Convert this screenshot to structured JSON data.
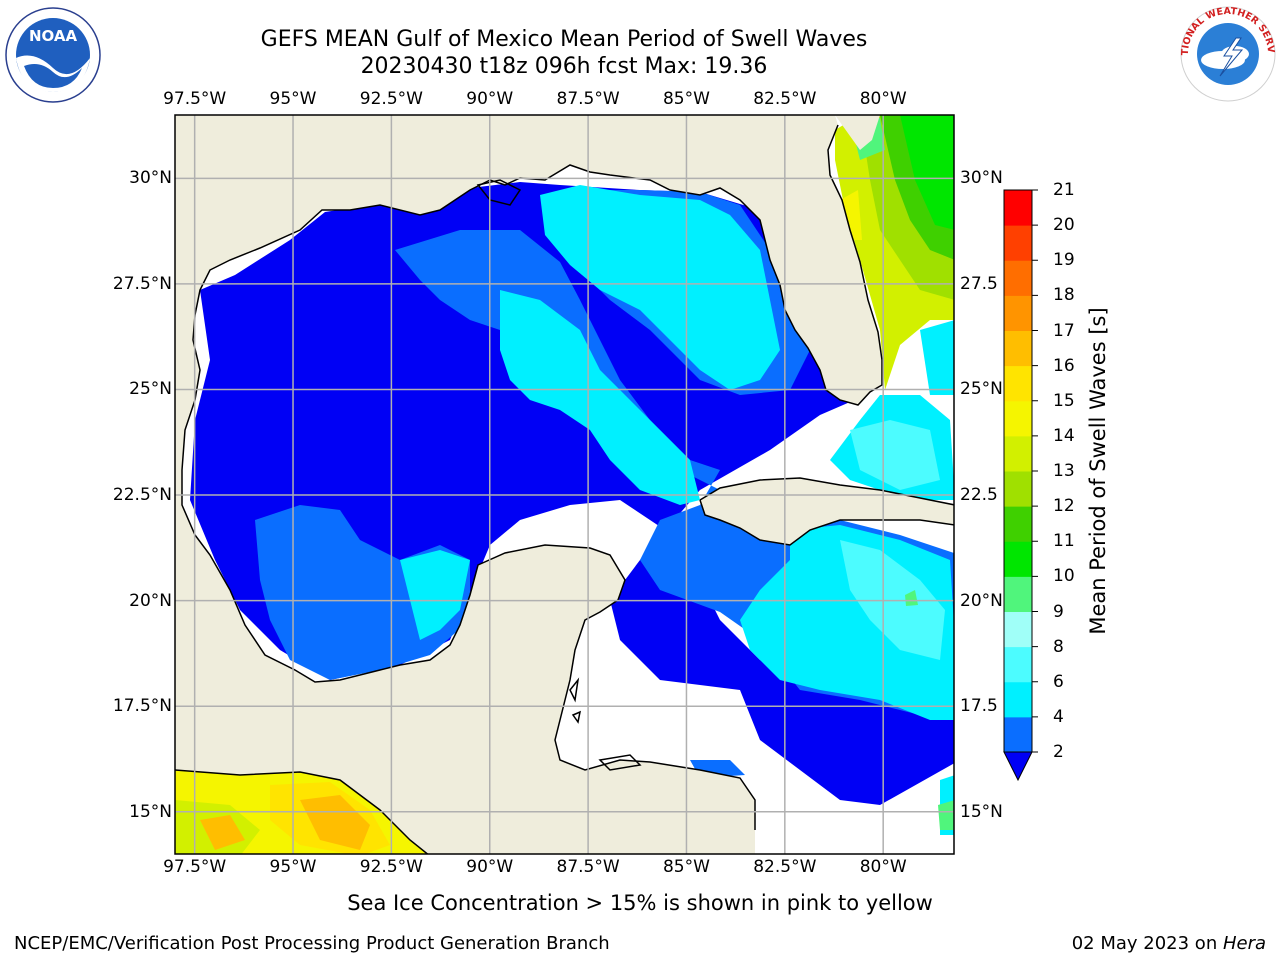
{
  "title": {
    "line1": "GEFS MEAN Gulf of Mexico Mean Period of Swell Waves",
    "line2": "20230430 t18z 096h fcst   Max: 19.36"
  },
  "map": {
    "extent": {
      "lon_min": -98.0,
      "lon_max": -78.2,
      "lat_min": 14.0,
      "lat_max": 31.5
    },
    "lon_ticks": [
      {
        "value": -97.5,
        "label": "97.5°W"
      },
      {
        "value": -95.0,
        "label": "95°W"
      },
      {
        "value": -92.5,
        "label": "92.5°W"
      },
      {
        "value": -90.0,
        "label": "90°W"
      },
      {
        "value": -87.5,
        "label": "87.5°W"
      },
      {
        "value": -85.0,
        "label": "85°W"
      },
      {
        "value": -82.5,
        "label": "82.5°W"
      },
      {
        "value": -80.0,
        "label": "80°W"
      }
    ],
    "lat_ticks_left": [
      {
        "value": 30.0,
        "label": "30°N"
      },
      {
        "value": 27.5,
        "label": "27.5°N"
      },
      {
        "value": 25.0,
        "label": "25°N"
      },
      {
        "value": 22.5,
        "label": "22.5°N"
      },
      {
        "value": 20.0,
        "label": "20°N"
      },
      {
        "value": 17.5,
        "label": "17.5°N"
      },
      {
        "value": 15.0,
        "label": "15°N"
      }
    ],
    "lat_ticks_right": [
      {
        "value": 30.0,
        "label": "30°N"
      },
      {
        "value": 27.5,
        "label": "27.5"
      },
      {
        "value": 25.0,
        "label": "25°N"
      },
      {
        "value": 22.5,
        "label": "22.5"
      },
      {
        "value": 20.0,
        "label": "20°N"
      },
      {
        "value": 17.5,
        "label": "17.5"
      },
      {
        "value": 15.0,
        "label": "15°N"
      }
    ],
    "colors": {
      "land": "#efeddc",
      "grid": "#b0b0b0",
      "coast": "#000000"
    }
  },
  "colorbar": {
    "label": "Mean Period of Swell Waves [s]",
    "levels": [
      "2",
      "4",
      "6",
      "8",
      "9",
      "10",
      "11",
      "12",
      "13",
      "14",
      "15",
      "16",
      "17",
      "18",
      "19",
      "20",
      "21"
    ],
    "colors": [
      "#0a6eff",
      "#00f0ff",
      "#4cfcff",
      "#a0fff8",
      "#50f57c",
      "#00e600",
      "#3fd000",
      "#a0e000",
      "#d2f000",
      "#f5f500",
      "#ffe400",
      "#ffbe00",
      "#ff9400",
      "#ff6e00",
      "#ff4000",
      "#ff0000"
    ],
    "under_color": "#0000f5"
  },
  "subnote": "Sea Ice Concentration > 15% is shown in pink to yellow",
  "footer": {
    "left": "NCEP/EMC/Verification Post Processing Product Generation Branch",
    "right_prefix": "02 May 2023 on ",
    "right_host": "Hera"
  },
  "logos": {
    "left": "NOAA",
    "right": "NATIONAL WEATHER SERVICE"
  }
}
